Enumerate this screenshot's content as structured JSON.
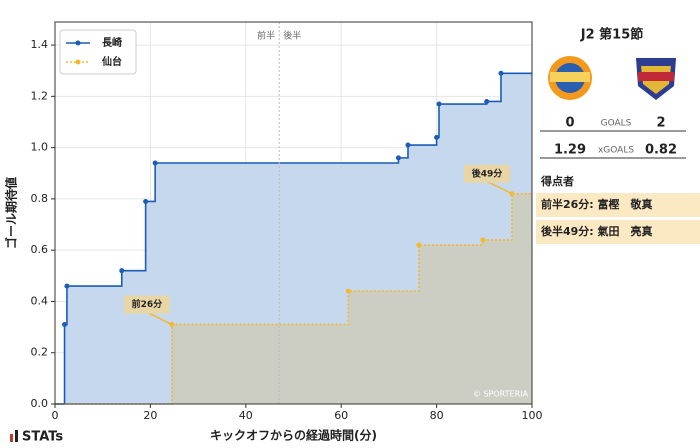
{
  "chart_data": {
    "type": "step",
    "xlabel": "キックオフからの経過時間(分)",
    "ylabel": "ゴール期待値",
    "xlim": [
      0,
      100
    ],
    "ylim": [
      0,
      1.49
    ],
    "xticks": [
      0,
      20,
      40,
      60,
      80,
      100
    ],
    "yticks": [
      {
        "value": 0,
        "label": "0.0"
      },
      0.2,
      0.4,
      0.6,
      0.8,
      {
        "value": 1,
        "label": "1.0"
      },
      1.2,
      1.4
    ],
    "grid": true,
    "legend": "upper left",
    "halftime": {
      "x": 47,
      "labels": [
        "前半",
        "後半"
      ]
    },
    "series": [
      {
        "name": "長崎",
        "color": "#1a5cb8",
        "fill": "#c6d8ee",
        "dashed": false,
        "x": [
          0,
          2,
          2.5,
          14,
          19,
          21,
          72,
          74,
          80,
          80.5,
          90.5,
          93.5,
          100
        ],
        "values": [
          0,
          0.31,
          0.46,
          0.52,
          0.79,
          0.94,
          0.96,
          1.01,
          1.04,
          1.17,
          1.18,
          1.29,
          1.29
        ]
      },
      {
        "name": "仙台",
        "color": "#f5b82e",
        "fill": "#cdcdbc",
        "dashed": true,
        "x": [
          0,
          24.5,
          61.5,
          76.3,
          89.7,
          95.8,
          100
        ],
        "values": [
          0,
          0.31,
          0.44,
          0.62,
          0.64,
          0.82,
          0.82
        ]
      }
    ],
    "annotations": [
      {
        "text": "前26分",
        "x": 24.5,
        "y": 0.31
      },
      {
        "text": "後49分",
        "x": 95.8,
        "y": 0.82
      }
    ],
    "watermark": "© SPORTERIA"
  },
  "panel": {
    "title": "J2 第15節",
    "goals": {
      "home": 0,
      "label": "GOALS",
      "away": 2
    },
    "xgoals": {
      "home": 1.29,
      "label": "xGOALS",
      "away": 0.82
    },
    "scorers_title": "得点者",
    "scorers": [
      "前半26分: 富樫　敬真",
      "後半49分: 氣田　亮真"
    ],
    "brand": "STATs"
  }
}
